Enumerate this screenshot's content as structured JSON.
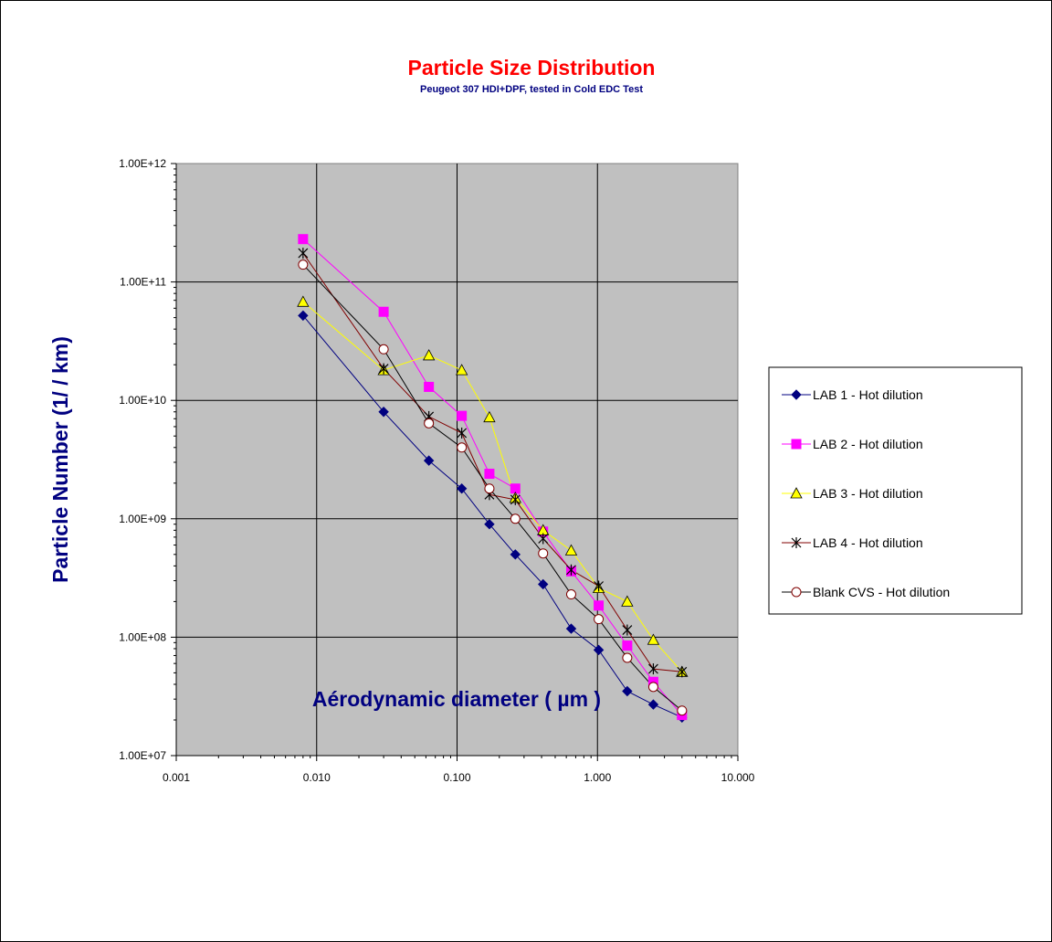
{
  "chart_data": {
    "type": "scatter",
    "title": "Particle Size Distribution",
    "subtitle": "Peugeot 307 HDI+DPF,  tested in  Cold EDC Test",
    "xlabel": "Aérodynamic diameter ( µm )",
    "ylabel": "Particle Number (1/ / km)",
    "x_scale": "log",
    "y_scale": "log",
    "xlim": [
      0.001,
      10
    ],
    "ylim": [
      10000000,
      1000000000000
    ],
    "x_ticks": [
      "0.001",
      "0.010",
      "0.100",
      "1.000",
      "10.000"
    ],
    "y_ticks": [
      "1.00E+07",
      "1.00E+08",
      "1.00E+09",
      "1.00E+10",
      "1.00E+11",
      "1.00E+12"
    ],
    "grid": true,
    "plot_background": "#c0c0c0",
    "legend_position": "right",
    "series": [
      {
        "name": "LAB 1 - Hot dilution",
        "color": "#000080",
        "marker": "diamond",
        "x": [
          0.008,
          0.03,
          0.063,
          0.108,
          0.17,
          0.26,
          0.41,
          0.65,
          1.02,
          1.63,
          2.5,
          4.0
        ],
        "y": [
          52000000000,
          8000000000,
          3100000000,
          1800000000,
          900000000,
          500000000,
          280000000,
          118000000,
          78000000,
          35000000,
          27000000,
          21000000
        ]
      },
      {
        "name": "LAB 2 - Hot dilution",
        "color": "#ff00ff",
        "marker": "square",
        "x": [
          0.008,
          0.03,
          0.063,
          0.108,
          0.17,
          0.26,
          0.41,
          0.65,
          1.02,
          1.63,
          2.5,
          4.0
        ],
        "y": [
          230000000000,
          56000000000,
          13000000000,
          7400000000,
          2400000000,
          1800000000,
          780000000,
          360000000,
          185000000,
          85000000,
          42000000,
          22000000
        ]
      },
      {
        "name": "LAB 3 - Hot dilution",
        "color": "#ffff00",
        "marker": "triangle",
        "x": [
          0.008,
          0.03,
          0.063,
          0.108,
          0.17,
          0.26,
          0.41,
          0.65,
          1.02,
          1.63,
          2.5,
          4.0
        ],
        "y": [
          68000000000,
          18000000000,
          24000000000,
          18000000000,
          7200000000,
          1500000000,
          800000000,
          540000000,
          260000000,
          200000000,
          95000000,
          51000000
        ]
      },
      {
        "name": "LAB 4 - Hot dilution",
        "color": "#800000",
        "marker": "star",
        "x": [
          0.008,
          0.03,
          0.063,
          0.108,
          0.17,
          0.26,
          0.41,
          0.65,
          1.02,
          1.63,
          2.5,
          4.0
        ],
        "y": [
          175000000000,
          18500000000,
          7300000000,
          5300000000,
          1600000000,
          1450000000,
          680000000,
          370000000,
          270000000,
          115000000,
          54000000,
          51000000
        ]
      },
      {
        "name": "Blank CVS - Hot dilution",
        "color": "#800000",
        "marker": "circle",
        "x": [
          0.008,
          0.03,
          0.063,
          0.108,
          0.17,
          0.26,
          0.41,
          0.65,
          1.02,
          1.63,
          2.5,
          4.0
        ],
        "y": [
          140000000000,
          27000000000,
          6400000000,
          4000000000,
          1800000000,
          1000000000,
          510000000,
          230000000,
          142000000,
          67000000,
          38000000,
          24000000
        ]
      }
    ]
  },
  "colors": {
    "title": "#ff0000",
    "subtitle": "#000080",
    "axis_label": "#000080",
    "line_lab3": "#ffff00",
    "line_blank": "#000000"
  }
}
